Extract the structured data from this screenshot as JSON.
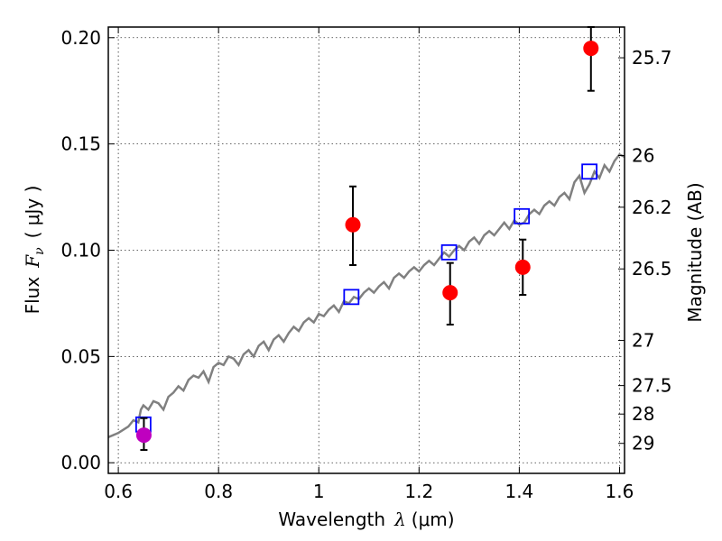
{
  "chart_data": {
    "type": "scatter",
    "xlabel_prefix": "Wavelength",
    "xlabel_symbol": "λ",
    "xlabel_unit": "(μm)",
    "ylabel_prefix": "Flux",
    "ylabel_symbol": "F",
    "ylabel_subscript": "ν",
    "ylabel_unit": "( μJy )",
    "y2label": "Magnitude (AB)",
    "xlim": [
      0.58,
      1.61
    ],
    "ylim": [
      -0.005,
      0.205
    ],
    "grid": true,
    "x_ticks": [
      {
        "value": 0.6,
        "label": "0.6"
      },
      {
        "value": 0.8,
        "label": "0.8"
      },
      {
        "value": 1.0,
        "label": "1"
      },
      {
        "value": 1.2,
        "label": "1.2"
      },
      {
        "value": 1.4,
        "label": "1.4"
      },
      {
        "value": 1.6,
        "label": "1.6"
      }
    ],
    "y_ticks": [
      {
        "value": 0.0,
        "label": "0.00"
      },
      {
        "value": 0.05,
        "label": "0.05"
      },
      {
        "value": 0.1,
        "label": "0.10"
      },
      {
        "value": 0.15,
        "label": "0.15"
      },
      {
        "value": 0.2,
        "label": "0.20"
      }
    ],
    "y2_ticks": [
      {
        "value": 25.7,
        "label": "25.7"
      },
      {
        "value": 26,
        "label": "26"
      },
      {
        "value": 26.2,
        "label": "26.2"
      },
      {
        "value": 26.5,
        "label": "26.5"
      },
      {
        "value": 27,
        "label": "27"
      },
      {
        "value": 27.5,
        "label": "27.5"
      },
      {
        "value": 28,
        "label": "28"
      },
      {
        "value": 29,
        "label": "29"
      }
    ],
    "model_spectrum": {
      "color": "#808080",
      "x": [
        0.58,
        0.6,
        0.62,
        0.63,
        0.64,
        0.645,
        0.65,
        0.66,
        0.67,
        0.68,
        0.69,
        0.7,
        0.71,
        0.72,
        0.73,
        0.74,
        0.75,
        0.76,
        0.77,
        0.78,
        0.79,
        0.8,
        0.81,
        0.82,
        0.83,
        0.84,
        0.85,
        0.86,
        0.87,
        0.88,
        0.89,
        0.9,
        0.91,
        0.92,
        0.93,
        0.94,
        0.95,
        0.96,
        0.97,
        0.98,
        0.99,
        1.0,
        1.01,
        1.02,
        1.03,
        1.04,
        1.05,
        1.06,
        1.07,
        1.08,
        1.09,
        1.1,
        1.11,
        1.12,
        1.13,
        1.14,
        1.15,
        1.16,
        1.17,
        1.18,
        1.19,
        1.2,
        1.21,
        1.22,
        1.23,
        1.24,
        1.25,
        1.26,
        1.27,
        1.28,
        1.29,
        1.3,
        1.31,
        1.32,
        1.33,
        1.34,
        1.35,
        1.36,
        1.37,
        1.38,
        1.39,
        1.4,
        1.41,
        1.42,
        1.43,
        1.44,
        1.45,
        1.46,
        1.47,
        1.48,
        1.49,
        1.5,
        1.51,
        1.52,
        1.53,
        1.54,
        1.55,
        1.56,
        1.57,
        1.58,
        1.59,
        1.6,
        1.61
      ],
      "y": [
        0.012,
        0.014,
        0.017,
        0.02,
        0.019,
        0.025,
        0.027,
        0.025,
        0.029,
        0.028,
        0.025,
        0.031,
        0.033,
        0.036,
        0.034,
        0.039,
        0.041,
        0.04,
        0.043,
        0.038,
        0.045,
        0.047,
        0.046,
        0.05,
        0.049,
        0.046,
        0.051,
        0.053,
        0.05,
        0.055,
        0.057,
        0.053,
        0.058,
        0.06,
        0.057,
        0.061,
        0.064,
        0.062,
        0.066,
        0.068,
        0.066,
        0.07,
        0.069,
        0.072,
        0.074,
        0.071,
        0.076,
        0.075,
        0.078,
        0.077,
        0.08,
        0.082,
        0.08,
        0.083,
        0.085,
        0.082,
        0.087,
        0.089,
        0.087,
        0.09,
        0.092,
        0.09,
        0.093,
        0.095,
        0.093,
        0.096,
        0.099,
        0.097,
        0.1,
        0.102,
        0.1,
        0.104,
        0.106,
        0.103,
        0.107,
        0.109,
        0.107,
        0.11,
        0.113,
        0.11,
        0.114,
        0.112,
        0.113,
        0.117,
        0.119,
        0.117,
        0.121,
        0.123,
        0.121,
        0.125,
        0.127,
        0.124,
        0.132,
        0.135,
        0.127,
        0.131,
        0.137,
        0.134,
        0.14,
        0.137,
        0.142,
        0.145,
        0.144
      ]
    },
    "synthetic_photometry": {
      "marker": "open-square",
      "color": "#0000ff",
      "x": [
        0.65,
        1.065,
        1.26,
        1.405,
        1.54
      ],
      "y": [
        0.018,
        0.078,
        0.099,
        0.116,
        0.137
      ]
    },
    "observed_photometry": {
      "marker": "filled-circle",
      "color": "#ff0000",
      "points": [
        {
          "x": 1.068,
          "y": 0.112,
          "err_low": 0.093,
          "err_high": 0.13
        },
        {
          "x": 1.262,
          "y": 0.08,
          "err_low": 0.065,
          "err_high": 0.094
        },
        {
          "x": 1.407,
          "y": 0.092,
          "err_low": 0.079,
          "err_high": 0.105
        },
        {
          "x": 1.543,
          "y": 0.195,
          "err_low": 0.175,
          "err_high": 0.205
        }
      ]
    },
    "optical_point": {
      "marker": "filled-circle",
      "color": "#bf00bf",
      "x": 0.651,
      "y": 0.013,
      "err_low": 0.006,
      "err_high": 0.021
    }
  }
}
